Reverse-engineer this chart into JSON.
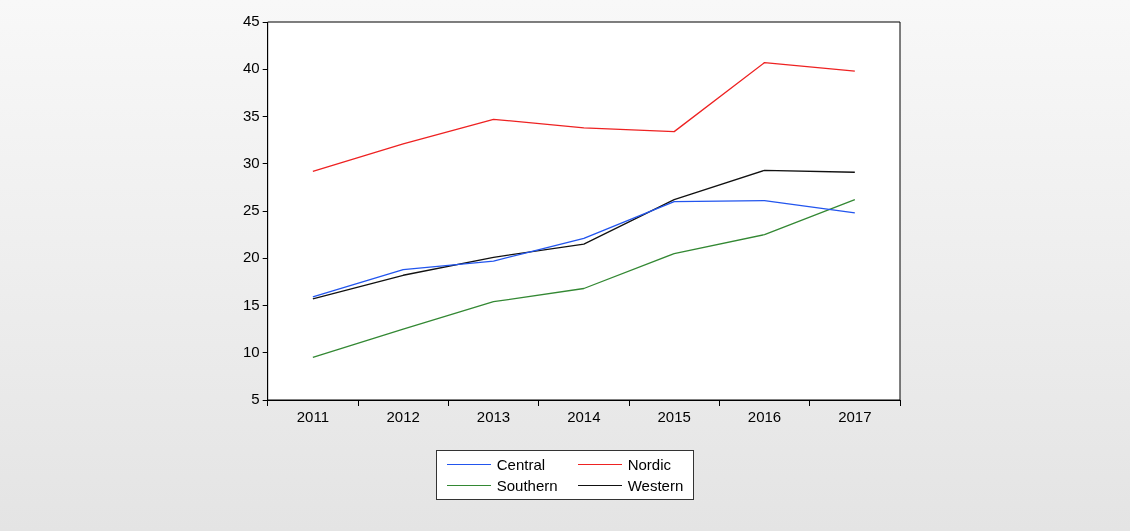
{
  "chart_data": {
    "type": "line",
    "categories": [
      "2011",
      "2012",
      "2013",
      "2014",
      "2015",
      "2016",
      "2017"
    ],
    "series": [
      {
        "name": "Central",
        "color": "#2255ee",
        "values": [
          15.9,
          18.8,
          19.7,
          22.1,
          26.0,
          26.1,
          24.8
        ]
      },
      {
        "name": "Nordic",
        "color": "#ee2222",
        "values": [
          29.2,
          32.1,
          34.7,
          33.8,
          33.4,
          40.7,
          39.8
        ]
      },
      {
        "name": "Southern",
        "color": "#338833",
        "values": [
          9.5,
          12.5,
          15.4,
          16.8,
          20.5,
          22.5,
          26.2
        ]
      },
      {
        "name": "Western",
        "color": "#111111",
        "values": [
          15.7,
          18.2,
          20.1,
          21.5,
          26.2,
          29.3,
          29.1
        ]
      }
    ],
    "ylim": [
      5,
      45
    ],
    "yticks": [
      5,
      10,
      15,
      20,
      25,
      30,
      35,
      40,
      45
    ],
    "grid": false,
    "legend": "bottom",
    "marker": "none",
    "line_style": "solid"
  }
}
